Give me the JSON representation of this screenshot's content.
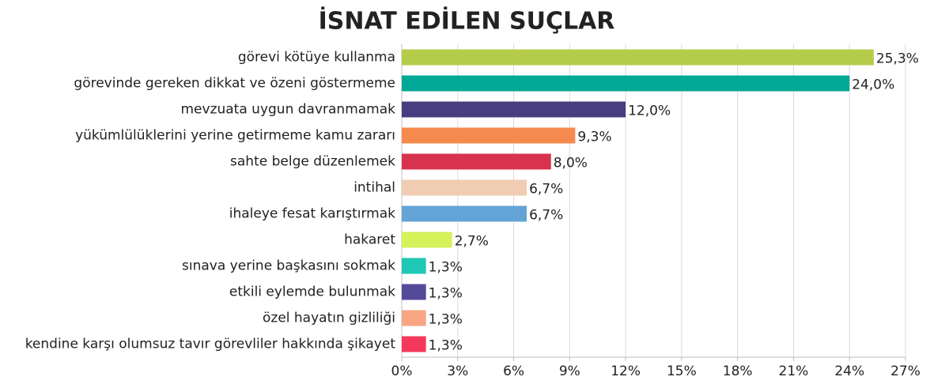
{
  "chart_data": {
    "type": "barh",
    "title": "İSNAT EDİLEN SUÇLAR",
    "categories": [
      "görevi kötüye kullanma",
      "görevinde gereken dikkat ve özeni göstermeme",
      "mevzuata uygun davranmamak",
      "yükümlülüklerini yerine getirmeme kamu zararı",
      "sahte belge düzenlemek",
      "intihal",
      "ihaleye fesat karıştırmak",
      "hakaret",
      "sınava yerine başkasını sokmak",
      "etkili eylemde bulunmak",
      "özel hayatın gizliliği",
      "kendine karşı olumsuz tavır görevliler hakkında şikayet"
    ],
    "values": [
      25.3,
      24.0,
      12.0,
      9.3,
      8.0,
      6.7,
      6.7,
      2.7,
      1.3,
      1.3,
      1.3,
      1.3
    ],
    "value_labels": [
      "25,3%",
      "24,0%",
      "12,0%",
      "9,3%",
      "8,0%",
      "6,7%",
      "6,7%",
      "2,7%",
      "1,3%",
      "1,3%",
      "1,3%",
      "1,3%"
    ],
    "colors": [
      "#b5cc4a",
      "#00a896",
      "#483d7e",
      "#f58a4e",
      "#d7334e",
      "#f0cdb2",
      "#63a3d6",
      "#d5f25a",
      "#1ec8b4",
      "#544a9a",
      "#f8a583",
      "#f5395c"
    ],
    "xlim": [
      0,
      27
    ],
    "xticks": [
      {
        "value": 0,
        "label": "0%"
      },
      {
        "value": 3,
        "label": "3%"
      },
      {
        "value": 6,
        "label": "6%"
      },
      {
        "value": 9,
        "label": "9%"
      },
      {
        "value": 12,
        "label": "12%"
      },
      {
        "value": 15,
        "label": "15%"
      },
      {
        "value": 18,
        "label": "18%"
      },
      {
        "value": 21,
        "label": "21%"
      },
      {
        "value": 24,
        "label": "24%"
      },
      {
        "value": 27,
        "label": "27%"
      }
    ],
    "grid": true
  }
}
